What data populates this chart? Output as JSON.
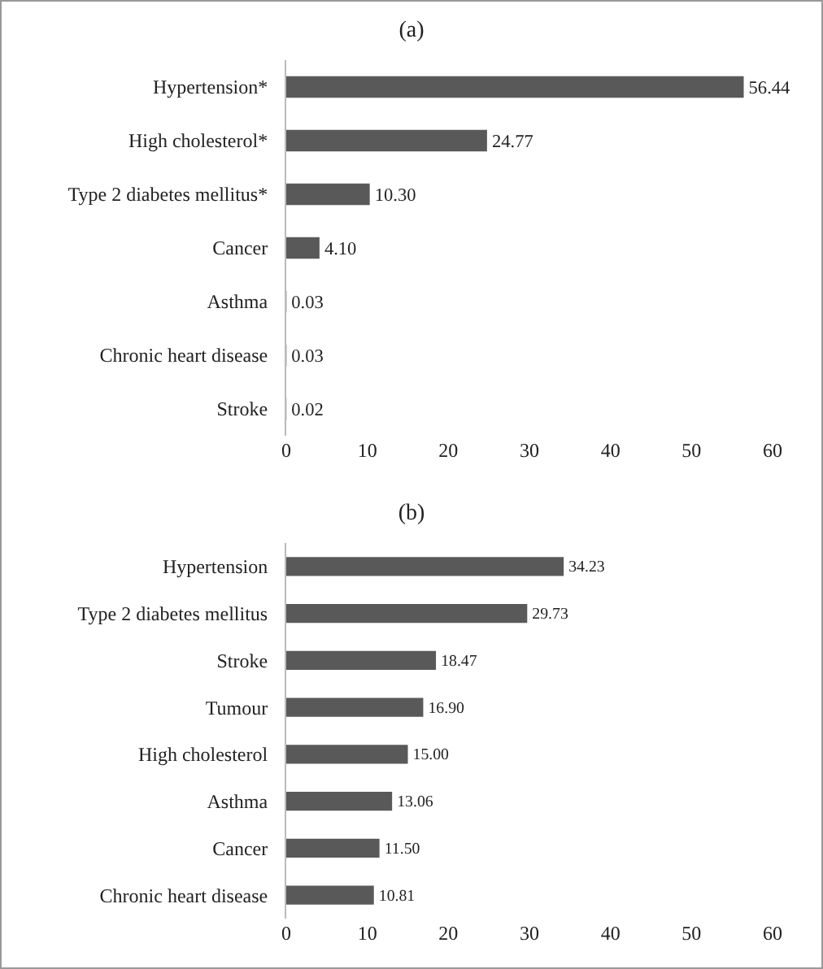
{
  "chart_data": [
    {
      "type": "bar",
      "title": "(a)",
      "orientation": "horizontal",
      "categories": [
        "Hypertension*",
        "High cholesterol*",
        "Type 2 diabetes mellitus*",
        "Cancer",
        "Asthma",
        "Chronic heart disease",
        "Stroke"
      ],
      "values": [
        56.44,
        24.77,
        10.3,
        4.1,
        0.03,
        0.03,
        0.02
      ],
      "value_labels": [
        "56.44",
        "24.77",
        "10.30",
        "4.10",
        "0.03",
        "0.03",
        "0.02"
      ],
      "color": "#595959",
      "xlim": [
        0,
        60
      ],
      "xticks": [
        0,
        10,
        20,
        30,
        40,
        50,
        60
      ],
      "grid": false
    },
    {
      "type": "bar",
      "title": "(b)",
      "orientation": "horizontal",
      "categories": [
        "Hypertension",
        "Type 2 diabetes mellitus",
        "Stroke",
        "Tumour",
        "High cholesterol",
        "Asthma",
        "Cancer",
        "Chronic heart disease"
      ],
      "values": [
        34.23,
        29.73,
        18.47,
        16.9,
        15.0,
        13.06,
        11.5,
        10.81
      ],
      "value_labels": [
        "34.23",
        "29.73",
        "18.47",
        "16.90",
        "15.00",
        "13.06",
        "11.50",
        "10.81"
      ],
      "color": "#595959",
      "xlim": [
        0,
        60
      ],
      "xticks": [
        0,
        10,
        20,
        30,
        40,
        50,
        60
      ],
      "grid": false
    }
  ]
}
